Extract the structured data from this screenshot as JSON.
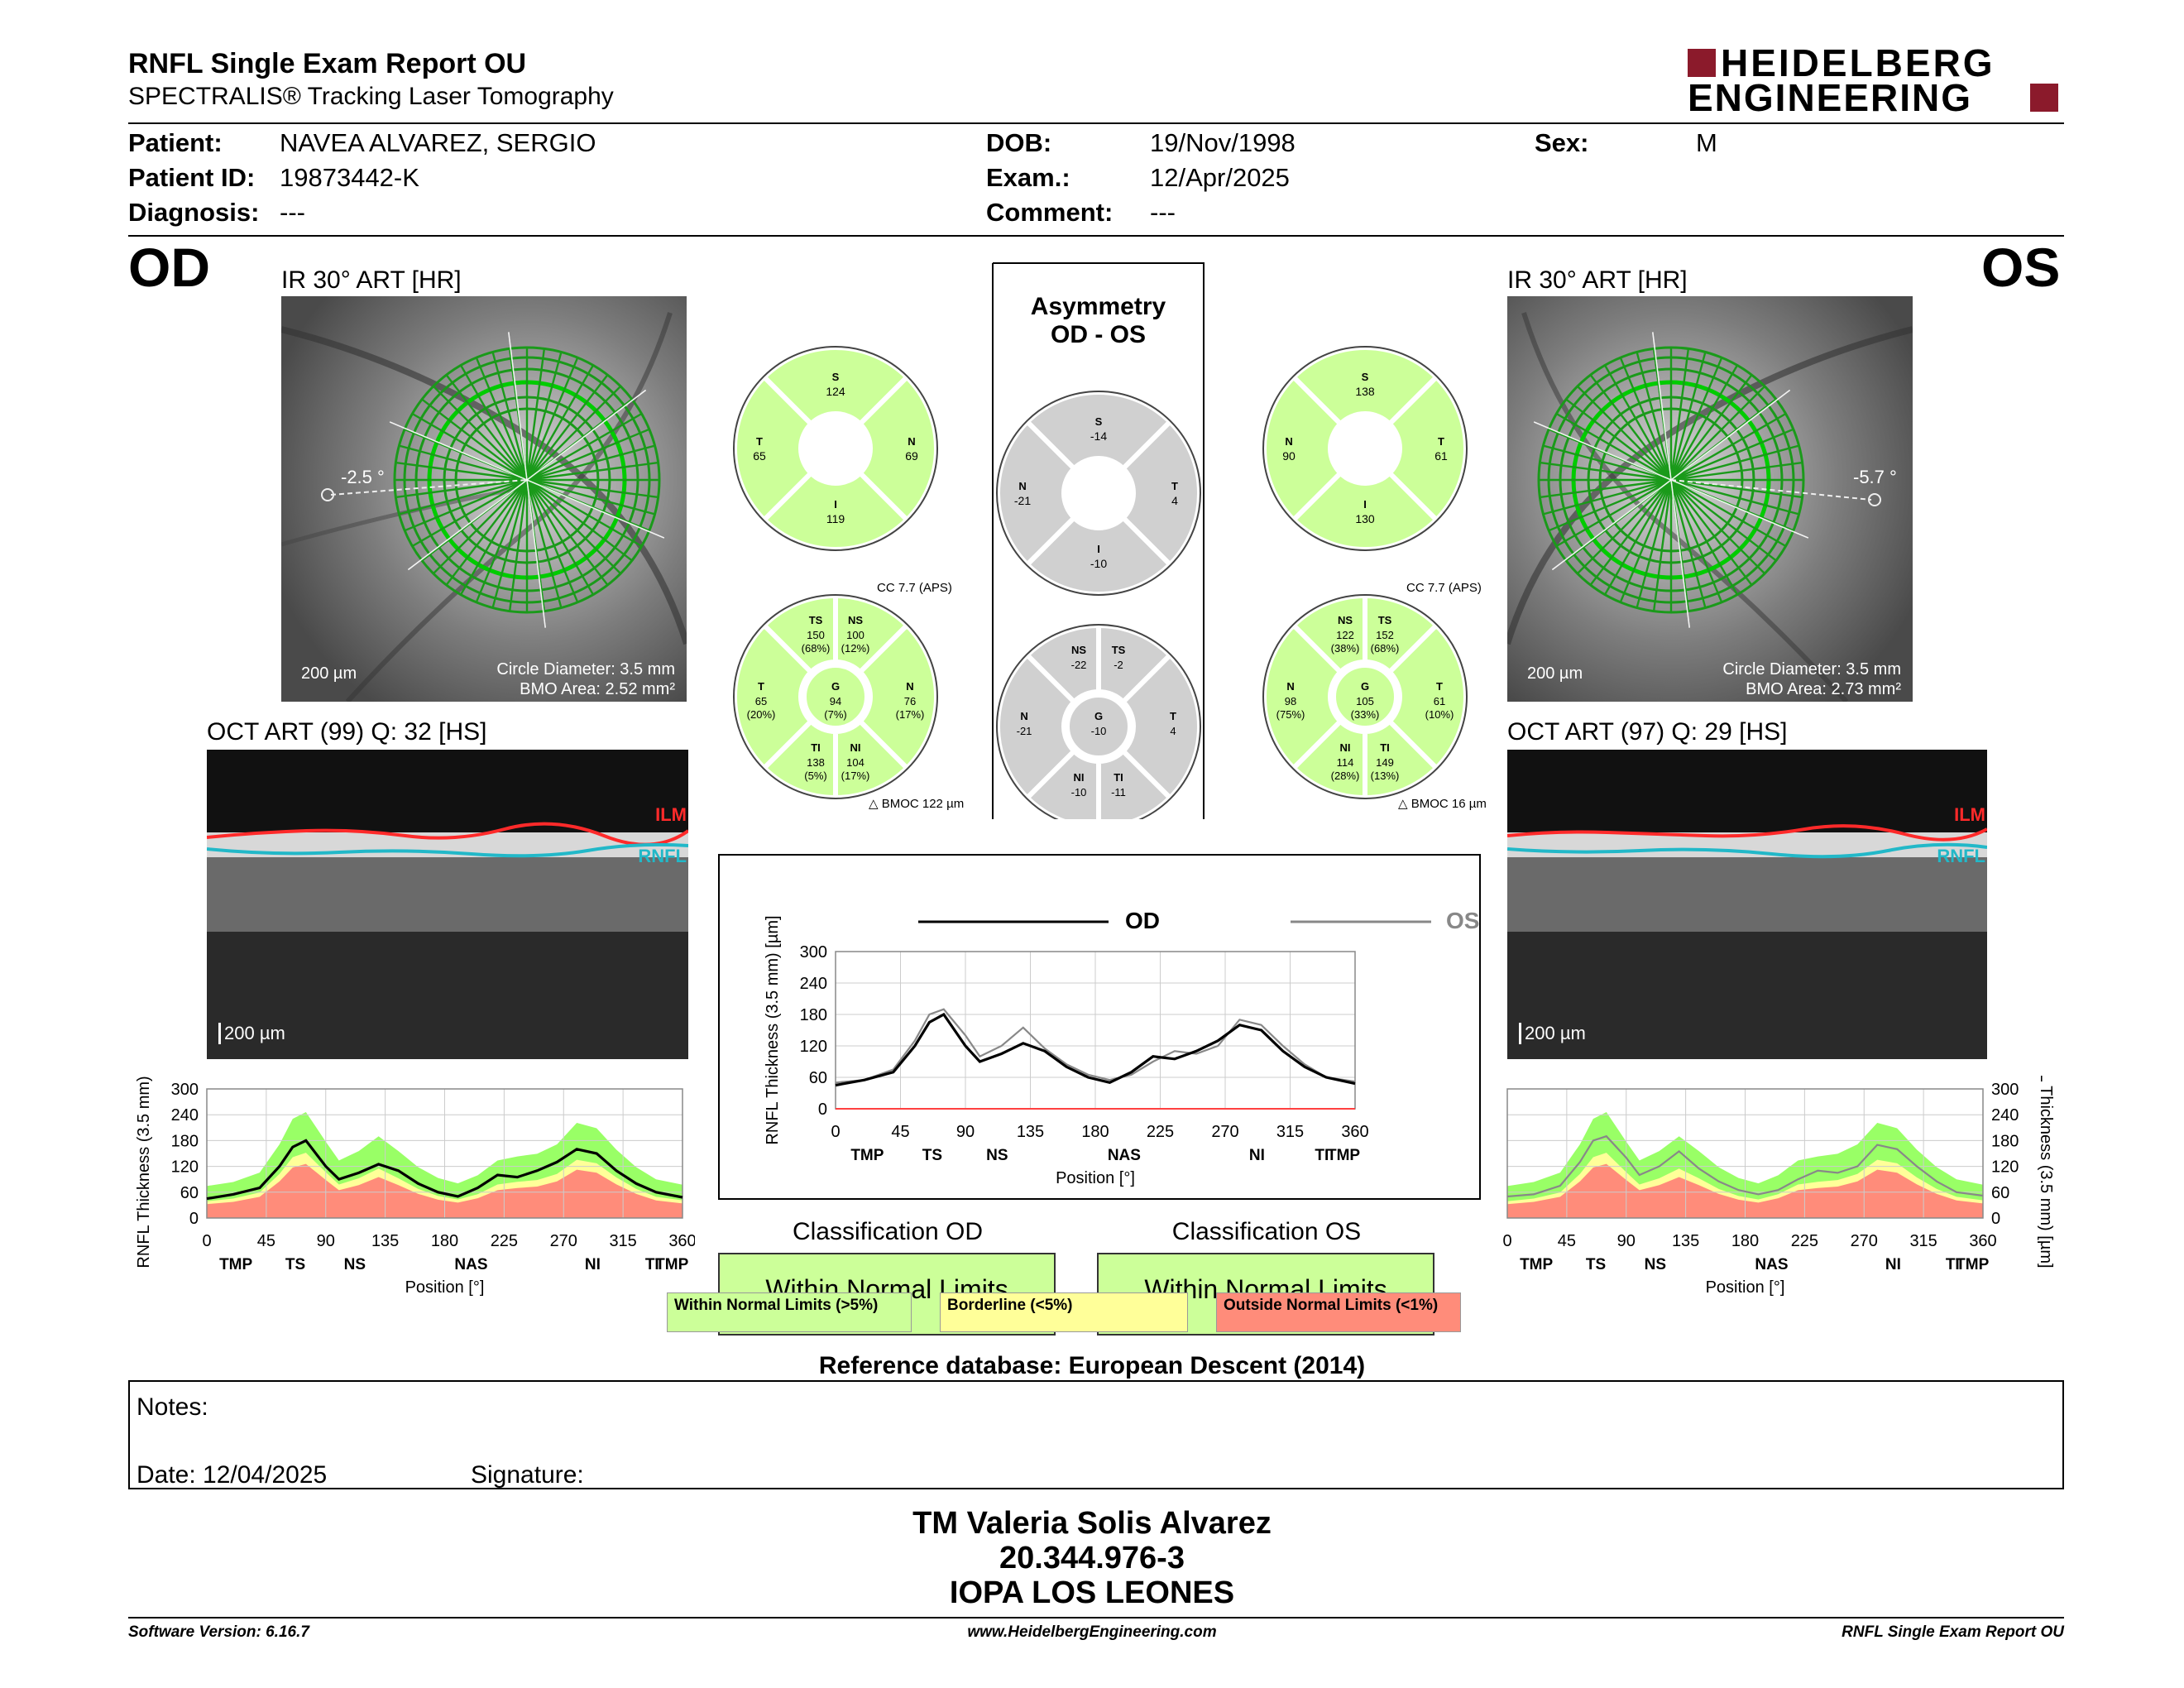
{
  "header": {
    "title": "RNFL Single Exam Report OU",
    "subtitle": "SPECTRALIS® Tracking Laser Tomography",
    "logo_line1": "HEIDELBERG",
    "logo_line2": "ENGINEERING"
  },
  "patient": {
    "patient_label": "Patient:",
    "patient_value": "NAVEA ALVAREZ, SERGIO",
    "id_label": "Patient ID:",
    "id_value": "19873442-K",
    "diagnosis_label": "Diagnosis:",
    "diagnosis_value": "---",
    "dob_label": "DOB:",
    "dob_value": "19/Nov/1998",
    "exam_label": "Exam.:",
    "exam_value": "12/Apr/2025",
    "comment_label": "Comment:",
    "comment_value": "---",
    "sex_label": "Sex:",
    "sex_value": "M"
  },
  "od": {
    "eye": "OD",
    "ir_title": "IR 30° ART [HR]",
    "angle": "-2.5 °",
    "scale": "200 µm",
    "circle_diameter": "Circle Diameter: 3.5 mm",
    "bmo_area": "BMO Area: 2.52 mm²",
    "oct_title": "OCT ART (99) Q: 32 [HS]",
    "oct_scale": "200 µm",
    "ilm": "ILM",
    "rnfl": "RNFL",
    "quad": {
      "S": "124",
      "T": "65",
      "N": "69",
      "I": "119"
    },
    "cc": "CC 7.7 (APS)",
    "sectors": {
      "TS": [
        "150",
        "(68%)"
      ],
      "NS": [
        "100",
        "(12%)"
      ],
      "T": [
        "65",
        "(20%)"
      ],
      "G": [
        "94",
        "(7%)"
      ],
      "N": [
        "76",
        "(17%)"
      ],
      "TI": [
        "138",
        "(5%)"
      ],
      "NI": [
        "104",
        "(17%)"
      ]
    },
    "bmoc": "BMOC 122 µm",
    "classification_title": "Classification OD",
    "classification": "Within Normal Limits"
  },
  "os": {
    "eye": "OS",
    "ir_title": "IR 30° ART [HR]",
    "angle": "-5.7 °",
    "scale": "200 µm",
    "circle_diameter": "Circle Diameter: 3.5 mm",
    "bmo_area": "BMO Area: 2.73 mm²",
    "oct_title": "OCT ART (97) Q: 29 [HS]",
    "oct_scale": "200 µm",
    "ilm": "ILM",
    "rnfl": "RNFL",
    "quad": {
      "S": "138",
      "T": "61",
      "N": "90",
      "I": "130"
    },
    "cc": "CC 7.7 (APS)",
    "sectors": {
      "NS": [
        "122",
        "(38%)"
      ],
      "TS": [
        "152",
        "(68%)"
      ],
      "N": [
        "98",
        "(75%)"
      ],
      "G": [
        "105",
        "(33%)"
      ],
      "T": [
        "61",
        "(10%)"
      ],
      "NI": [
        "114",
        "(28%)"
      ],
      "TI": [
        "149",
        "(13%)"
      ]
    },
    "bmoc": "BMOC 16 µm",
    "classification_title": "Classification OS",
    "classification": "Within Normal Limits"
  },
  "asymmetry": {
    "title1": "Asymmetry",
    "title2": "OD - OS",
    "quad": {
      "S": "-14",
      "N": "-21",
      "T": "4",
      "I": "-10"
    },
    "sectors": {
      "NS": "-22",
      "TS": "-2",
      "N": "-21",
      "G": "-10",
      "T": "4",
      "NI": "-10",
      "TI": "-11"
    },
    "legend_od": "OD",
    "legend_os": "OS"
  },
  "chart_data": [
    {
      "type": "line",
      "title": "",
      "ylabel": "RNFL Thickness (3.5 mm) [µm]",
      "xlabel": "Position [°]",
      "ylim": [
        0,
        300
      ],
      "xlim": [
        0,
        360
      ],
      "xticks": [
        0,
        45,
        90,
        135,
        180,
        225,
        270,
        315,
        360
      ],
      "yticks": [
        0,
        60,
        120,
        180,
        240,
        300
      ],
      "sector_labels": [
        "TMP",
        "TS",
        "NS",
        "NAS",
        "NI",
        "TI",
        "TMP"
      ],
      "series": [
        {
          "name": "OD",
          "x": [
            0,
            20,
            40,
            55,
            65,
            75,
            90,
            100,
            115,
            130,
            145,
            160,
            175,
            190,
            205,
            220,
            235,
            250,
            265,
            280,
            295,
            310,
            325,
            340,
            360
          ],
          "y": [
            45,
            55,
            70,
            120,
            165,
            180,
            120,
            90,
            105,
            125,
            110,
            80,
            60,
            50,
            70,
            100,
            95,
            110,
            130,
            160,
            150,
            110,
            80,
            60,
            48
          ]
        },
        {
          "name": "OS",
          "x": [
            0,
            20,
            40,
            55,
            65,
            75,
            90,
            100,
            115,
            130,
            145,
            160,
            175,
            190,
            205,
            220,
            235,
            250,
            265,
            280,
            295,
            310,
            325,
            340,
            360
          ],
          "y": [
            50,
            55,
            75,
            130,
            180,
            190,
            140,
            100,
            120,
            155,
            115,
            85,
            65,
            55,
            65,
            90,
            110,
            105,
            120,
            170,
            160,
            120,
            85,
            60,
            52
          ]
        }
      ]
    }
  ],
  "classification_legend": {
    "normal": "Within Normal Limits (>5%)",
    "borderline": "Borderline (<5%)",
    "outside": "Outside Normal Limits (<1%)"
  },
  "reference": "Reference database: European Descent (2014)",
  "notes": {
    "notes_label": "Notes:",
    "date_label": "Date: 12/04/2025",
    "signature_label": "Signature:"
  },
  "stamp": {
    "line1": "TM Valeria Solis Alvarez",
    "line2": "20.344.976-3",
    "line3": "IOPA LOS LEONES"
  },
  "footer": {
    "software": "Software Version: 6.16.7",
    "website": "www.HeidelbergEngineering.com",
    "report": "RNFL Single Exam Report OU"
  },
  "colors": {
    "normal": "#ccff99",
    "borderline": "#ffff99",
    "outside": "#ff8c7a",
    "green_band": "#99ff66",
    "od_line": "#000000",
    "os_line": "#888888"
  }
}
